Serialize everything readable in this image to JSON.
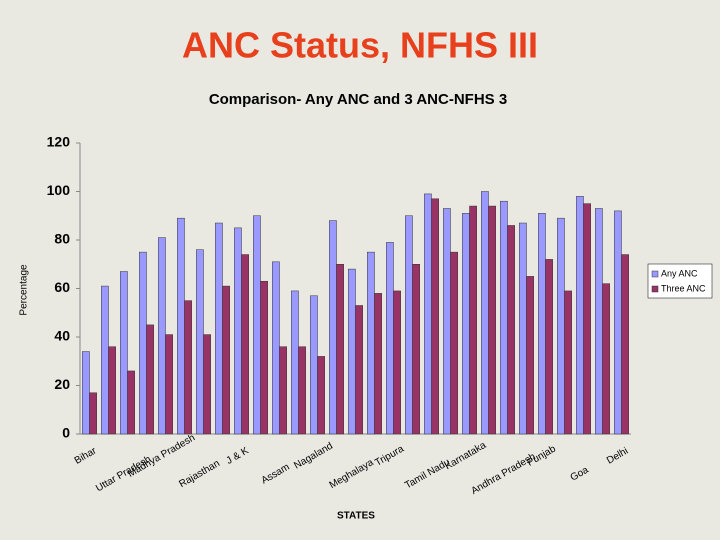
{
  "page_title": "ANC Status, NFHS III",
  "chart_data": {
    "type": "bar",
    "title": "Comparison- Any ANC and 3 ANC-NFHS 3",
    "x_label": "STATES",
    "y_label": "Percentage",
    "categories": [
      "Bihar",
      null,
      "Uttar Pradesh",
      null,
      "Madhya Pradesh",
      null,
      "Rajasthan",
      null,
      "J & K",
      null,
      "Assam",
      null,
      "Nagaland",
      null,
      "Meghalaya",
      null,
      "Tripura",
      null,
      "Tamil Nadu",
      null,
      "Karnataka",
      null,
      "Andhra Pradesh",
      null,
      "Punjab",
      null,
      "Goa",
      null,
      "Delhi"
    ],
    "series": [
      {
        "name": "Any ANC",
        "color": "#9999ff",
        "values": [
          34,
          61,
          67,
          75,
          81,
          89,
          76,
          87,
          85,
          90,
          71,
          59,
          57,
          88,
          68,
          75,
          79,
          90,
          99,
          93,
          91,
          100,
          96,
          87,
          91,
          89,
          98,
          93,
          92
        ]
      },
      {
        "name": "Three ANC",
        "color": "#993366",
        "values": [
          17,
          36,
          26,
          45,
          41,
          55,
          41,
          61,
          74,
          63,
          36,
          36,
          32,
          70,
          53,
          58,
          59,
          70,
          97,
          75,
          94,
          94,
          86,
          65,
          72,
          59,
          95,
          62,
          74
        ]
      }
    ],
    "ylim": [
      0,
      120
    ],
    "yticks": [
      0,
      20,
      40,
      60,
      80,
      100,
      120
    ],
    "legend": "right"
  }
}
